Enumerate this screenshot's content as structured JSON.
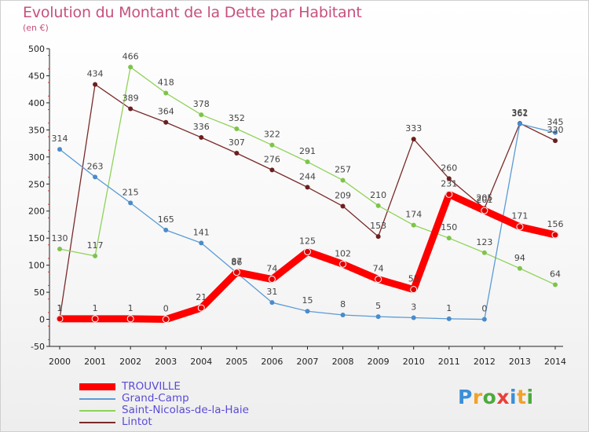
{
  "header": {
    "title": "Evolution du Montant de la Dette par Habitant",
    "subtitle": "(en €)"
  },
  "logo": {
    "letters": [
      {
        "ch": "P",
        "color": "#3b8fd9"
      },
      {
        "ch": "r",
        "color": "#f2a12a"
      },
      {
        "ch": "o",
        "color": "#4caa3c"
      },
      {
        "ch": "x",
        "color": "#e8403a"
      },
      {
        "ch": "i",
        "color": "#3b8fd9"
      },
      {
        "ch": "t",
        "color": "#f2a12a"
      },
      {
        "ch": "i",
        "color": "#4caa3c"
      }
    ]
  },
  "chart_data": {
    "type": "line",
    "title": "Evolution du Montant de la Dette par Habitant",
    "subtitle": "(en €)",
    "xlabel": "",
    "ylabel": "",
    "x": [
      "2000",
      "2001",
      "2002",
      "2003",
      "2004",
      "2005",
      "2006",
      "2007",
      "2008",
      "2009",
      "2010",
      "2011",
      "2012",
      "2013",
      "2014"
    ],
    "ylim": [
      -50,
      500
    ],
    "yticks": [
      -50,
      0,
      50,
      100,
      150,
      200,
      250,
      300,
      350,
      400,
      450,
      500
    ],
    "grid": false,
    "legend": "bottom-left",
    "series": [
      {
        "name": "TROUVILLE",
        "color": "#ff0000",
        "marker": "#e00000",
        "values": [
          1,
          1,
          1,
          0,
          21,
          87,
          74,
          125,
          102,
          74,
          55,
          231,
          201,
          171,
          156
        ]
      },
      {
        "name": "Grand-Camp",
        "color": "#5b9bd5",
        "marker": "#4a8bcb",
        "values": [
          314,
          263,
          215,
          165,
          141,
          86,
          31,
          15,
          8,
          5,
          3,
          1,
          0,
          361,
          345
        ]
      },
      {
        "name": "Saint-Nicolas-de-la-Haie",
        "color": "#8fd35a",
        "marker": "#7dc44a",
        "values": [
          130,
          117,
          466,
          418,
          378,
          352,
          322,
          291,
          257,
          210,
          174,
          150,
          123,
          94,
          64
        ]
      },
      {
        "name": "Lintot",
        "color": "#7b2a2a",
        "marker": "#6b1f1f",
        "values": [
          1,
          434,
          389,
          364,
          336,
          307,
          276,
          244,
          209,
          153,
          333,
          260,
          205,
          362,
          330
        ]
      }
    ]
  }
}
